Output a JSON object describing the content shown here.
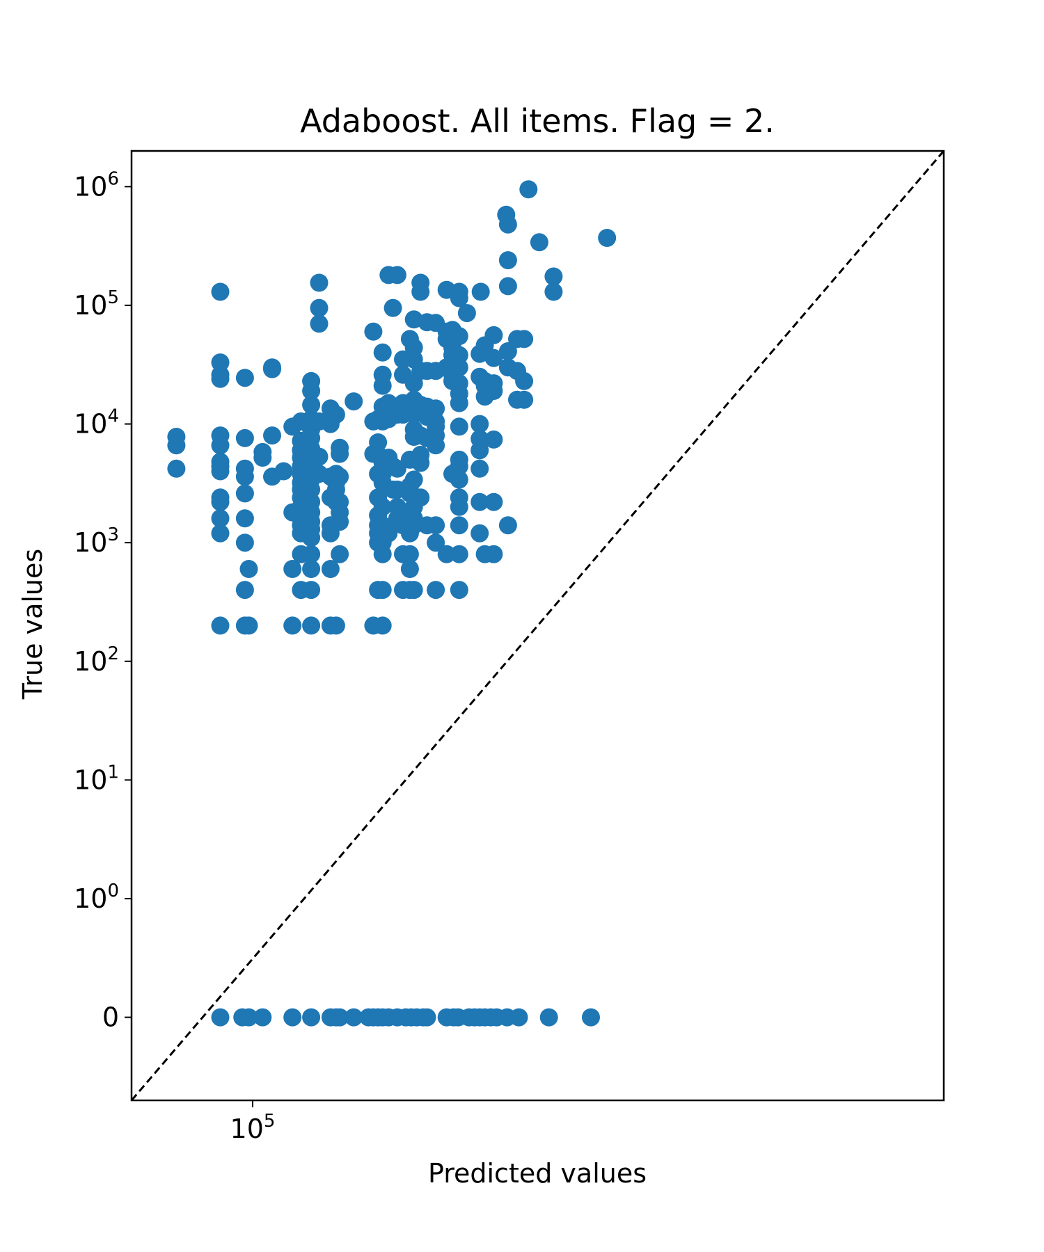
{
  "chart_data": {
    "type": "scatter",
    "title": "Adaboost. All items. Flag = 2.",
    "xlabel": "Predicted values",
    "ylabel": "True values",
    "xscale": "log",
    "yscale": "symlog",
    "xlim": [
      62000,
      1530000
    ],
    "ylim": [
      -0.7,
      2000000
    ],
    "grid": false,
    "legend": "none",
    "marker_color": "#1f77b4",
    "reference_line": {
      "style": "dashed",
      "color": "#000000",
      "from": [
        62000,
        -0.7
      ],
      "to": [
        1530000,
        2000000
      ]
    },
    "x_ticks": [
      {
        "value": 100000,
        "base": "10",
        "exp": "5"
      }
    ],
    "y_ticks": [
      {
        "value": 0,
        "base": "0",
        "exp": ""
      },
      {
        "value": 1,
        "base": "10",
        "exp": "0"
      },
      {
        "value": 10,
        "base": "10",
        "exp": "1"
      },
      {
        "value": 100,
        "base": "10",
        "exp": "2"
      },
      {
        "value": 1000,
        "base": "10",
        "exp": "3"
      },
      {
        "value": 10000,
        "base": "10",
        "exp": "4"
      },
      {
        "value": 100000,
        "base": "10",
        "exp": "5"
      },
      {
        "value": 1000000,
        "base": "10",
        "exp": "6"
      }
    ],
    "points": [
      [
        74000,
        7800
      ],
      [
        74000,
        6600
      ],
      [
        74000,
        4200
      ],
      [
        88000,
        130000
      ],
      [
        88000,
        33000
      ],
      [
        88000,
        26000
      ],
      [
        88000,
        24000
      ],
      [
        88000,
        8000
      ],
      [
        88000,
        6600
      ],
      [
        88000,
        4800
      ],
      [
        88000,
        4400
      ],
      [
        88000,
        4000
      ],
      [
        88000,
        2400
      ],
      [
        88000,
        2200
      ],
      [
        88000,
        1600
      ],
      [
        88000,
        1200
      ],
      [
        88000,
        200
      ],
      [
        97000,
        24500
      ],
      [
        97000,
        7600
      ],
      [
        97000,
        4200
      ],
      [
        97000,
        3600
      ],
      [
        97000,
        2600
      ],
      [
        97000,
        1600
      ],
      [
        97000,
        1000
      ],
      [
        97000,
        400
      ],
      [
        97000,
        200
      ],
      [
        98500,
        600
      ],
      [
        98500,
        200
      ],
      [
        104000,
        5800
      ],
      [
        104000,
        5200
      ],
      [
        108000,
        30000
      ],
      [
        108000,
        29000
      ],
      [
        108000,
        8000
      ],
      [
        108000,
        3600
      ],
      [
        113000,
        4000
      ],
      [
        117000,
        9500
      ],
      [
        117000,
        1800
      ],
      [
        117000,
        600
      ],
      [
        117000,
        200
      ],
      [
        121000,
        10500
      ],
      [
        121000,
        7200
      ],
      [
        121000,
        6000
      ],
      [
        121000,
        5200
      ],
      [
        121000,
        4400
      ],
      [
        121000,
        3800
      ],
      [
        121000,
        3200
      ],
      [
        121000,
        2800
      ],
      [
        121000,
        2400
      ],
      [
        121000,
        2000
      ],
      [
        121000,
        1600
      ],
      [
        121000,
        1400
      ],
      [
        121000,
        1200
      ],
      [
        121000,
        800
      ],
      [
        121000,
        400
      ],
      [
        126000,
        23000
      ],
      [
        126000,
        19000
      ],
      [
        126000,
        14500
      ],
      [
        126000,
        11000
      ],
      [
        126000,
        9000
      ],
      [
        126000,
        7600
      ],
      [
        126000,
        6200
      ],
      [
        126000,
        5000
      ],
      [
        126000,
        4000
      ],
      [
        126000,
        3400
      ],
      [
        126000,
        2800
      ],
      [
        126000,
        2200
      ],
      [
        126000,
        1800
      ],
      [
        126000,
        1500
      ],
      [
        126000,
        1300
      ],
      [
        126000,
        1100
      ],
      [
        126000,
        800
      ],
      [
        126000,
        600
      ],
      [
        126000,
        400
      ],
      [
        126000,
        200
      ],
      [
        130000,
        155000
      ],
      [
        130000,
        95000
      ],
      [
        130000,
        70000
      ],
      [
        130000,
        10500
      ],
      [
        130000,
        5300
      ],
      [
        130000,
        3800
      ],
      [
        136000,
        13500
      ],
      [
        136000,
        10000
      ],
      [
        136000,
        3600
      ],
      [
        136000,
        2400
      ],
      [
        136000,
        1400
      ],
      [
        136000,
        1200
      ],
      [
        136000,
        600
      ],
      [
        136000,
        200
      ],
      [
        139000,
        12000
      ],
      [
        139000,
        3800
      ],
      [
        139000,
        3200
      ],
      [
        139000,
        2800
      ],
      [
        139000,
        2200
      ],
      [
        139000,
        200
      ],
      [
        141000,
        6300
      ],
      [
        141000,
        5600
      ],
      [
        141000,
        3600
      ],
      [
        141000,
        2200
      ],
      [
        141000,
        1800
      ],
      [
        141000,
        1500
      ],
      [
        141000,
        800
      ],
      [
        149000,
        15500
      ],
      [
        161000,
        60000
      ],
      [
        161000,
        10500
      ],
      [
        161000,
        5600
      ],
      [
        161000,
        200
      ],
      [
        164000,
        11000
      ],
      [
        164000,
        7000
      ],
      [
        164000,
        5500
      ],
      [
        164000,
        3800
      ],
      [
        164000,
        2400
      ],
      [
        164000,
        1700
      ],
      [
        164000,
        1400
      ],
      [
        164000,
        1200
      ],
      [
        164000,
        1000
      ],
      [
        164000,
        400
      ],
      [
        167000,
        40000
      ],
      [
        167000,
        26000
      ],
      [
        167000,
        21000
      ],
      [
        167000,
        14000
      ],
      [
        167000,
        10500
      ],
      [
        167000,
        4700
      ],
      [
        167000,
        3800
      ],
      [
        167000,
        3200
      ],
      [
        167000,
        2000
      ],
      [
        167000,
        1400
      ],
      [
        167000,
        1000
      ],
      [
        167000,
        800
      ],
      [
        167000,
        400
      ],
      [
        167000,
        200
      ],
      [
        171000,
        180000
      ],
      [
        171000,
        15000
      ],
      [
        171000,
        11000
      ],
      [
        171000,
        5200
      ],
      [
        171000,
        4400
      ],
      [
        171000,
        1200
      ],
      [
        174000,
        95000
      ],
      [
        174000,
        12000
      ],
      [
        174000,
        4400
      ],
      [
        174000,
        2800
      ],
      [
        177000,
        180000
      ],
      [
        177000,
        12000
      ],
      [
        177000,
        4200
      ],
      [
        177000,
        2800
      ],
      [
        177000,
        2000
      ],
      [
        177000,
        1600
      ],
      [
        181000,
        35000
      ],
      [
        181000,
        26000
      ],
      [
        181000,
        15000
      ],
      [
        181000,
        12000
      ],
      [
        181000,
        1800
      ],
      [
        181000,
        1400
      ],
      [
        181000,
        800
      ],
      [
        181000,
        400
      ],
      [
        186000,
        52000
      ],
      [
        186000,
        13000
      ],
      [
        186000,
        5000
      ],
      [
        186000,
        3000
      ],
      [
        186000,
        2600
      ],
      [
        186000,
        1400
      ],
      [
        186000,
        1200
      ],
      [
        186000,
        800
      ],
      [
        186000,
        600
      ],
      [
        186000,
        400
      ],
      [
        189000,
        76000
      ],
      [
        189000,
        44000
      ],
      [
        189000,
        35000
      ],
      [
        189000,
        22000
      ],
      [
        189000,
        16000
      ],
      [
        189000,
        12000
      ],
      [
        189000,
        9000
      ],
      [
        189000,
        7800
      ],
      [
        189000,
        3400
      ],
      [
        189000,
        2000
      ],
      [
        189000,
        1600
      ],
      [
        189000,
        1400
      ],
      [
        189000,
        400
      ],
      [
        194000,
        155000
      ],
      [
        194000,
        130000
      ],
      [
        194000,
        28000
      ],
      [
        194000,
        14500
      ],
      [
        194000,
        8000
      ],
      [
        194000,
        5500
      ],
      [
        194000,
        4700
      ],
      [
        194000,
        2400
      ],
      [
        199000,
        72000
      ],
      [
        199000,
        28000
      ],
      [
        199000,
        14000
      ],
      [
        199000,
        11500
      ],
      [
        199000,
        7600
      ],
      [
        199000,
        1400
      ],
      [
        206000,
        71000
      ],
      [
        206000,
        28000
      ],
      [
        206000,
        13500
      ],
      [
        206000,
        10500
      ],
      [
        206000,
        9500
      ],
      [
        206000,
        8000
      ],
      [
        206000,
        6600
      ],
      [
        206000,
        1400
      ],
      [
        206000,
        1000
      ],
      [
        206000,
        400
      ],
      [
        215000,
        135000
      ],
      [
        215000,
        60000
      ],
      [
        215000,
        52000
      ],
      [
        215000,
        30000
      ],
      [
        215000,
        800
      ],
      [
        220000,
        62000
      ],
      [
        220000,
        44000
      ],
      [
        220000,
        38000
      ],
      [
        220000,
        26000
      ],
      [
        220000,
        23000
      ],
      [
        220000,
        3800
      ],
      [
        226000,
        130000
      ],
      [
        226000,
        115000
      ],
      [
        226000,
        55000
      ],
      [
        226000,
        38000
      ],
      [
        226000,
        30000
      ],
      [
        226000,
        22000
      ],
      [
        226000,
        18000
      ],
      [
        226000,
        15000
      ],
      [
        226000,
        9500
      ],
      [
        226000,
        5000
      ],
      [
        226000,
        4400
      ],
      [
        226000,
        3400
      ],
      [
        226000,
        2400
      ],
      [
        226000,
        2000
      ],
      [
        226000,
        1400
      ],
      [
        226000,
        800
      ],
      [
        226000,
        400
      ],
      [
        233000,
        86000
      ],
      [
        246000,
        130000
      ],
      [
        245000,
        39000
      ],
      [
        245000,
        25000
      ],
      [
        245000,
        10000
      ],
      [
        245000,
        7500
      ],
      [
        245000,
        6000
      ],
      [
        245000,
        4200
      ],
      [
        245000,
        2200
      ],
      [
        245000,
        1200
      ],
      [
        250000,
        46000
      ],
      [
        250000,
        23000
      ],
      [
        250000,
        21000
      ],
      [
        250000,
        17000
      ],
      [
        250000,
        800
      ],
      [
        259000,
        56000
      ],
      [
        259000,
        36000
      ],
      [
        259000,
        22000
      ],
      [
        259000,
        19000
      ],
      [
        259000,
        7400
      ],
      [
        259000,
        2200
      ],
      [
        259000,
        800
      ],
      [
        272000,
        580000
      ],
      [
        274000,
        480000
      ],
      [
        274000,
        240000
      ],
      [
        274000,
        145000
      ],
      [
        274000,
        41000
      ],
      [
        274000,
        30000
      ],
      [
        274000,
        1400
      ],
      [
        284000,
        52000
      ],
      [
        284000,
        28000
      ],
      [
        284000,
        16000
      ],
      [
        292000,
        52000
      ],
      [
        292000,
        23000
      ],
      [
        292000,
        16000
      ],
      [
        297000,
        950000
      ],
      [
        310000,
        340000
      ],
      [
        328000,
        175000
      ],
      [
        328000,
        130000
      ],
      [
        405000,
        370000
      ],
      [
        88000,
        0
      ],
      [
        96000,
        0
      ],
      [
        98500,
        0
      ],
      [
        104000,
        0
      ],
      [
        117000,
        0
      ],
      [
        126000,
        0
      ],
      [
        136000,
        0
      ],
      [
        139000,
        0
      ],
      [
        141000,
        0
      ],
      [
        149000,
        0
      ],
      [
        158000,
        0
      ],
      [
        161000,
        0
      ],
      [
        164000,
        0
      ],
      [
        167000,
        0
      ],
      [
        171000,
        0
      ],
      [
        177000,
        0
      ],
      [
        183000,
        0
      ],
      [
        187000,
        0
      ],
      [
        191000,
        0
      ],
      [
        196000,
        0
      ],
      [
        199000,
        0
      ],
      [
        215000,
        0
      ],
      [
        221000,
        0
      ],
      [
        225000,
        0
      ],
      [
        235000,
        0
      ],
      [
        240000,
        0
      ],
      [
        245000,
        0
      ],
      [
        250000,
        0
      ],
      [
        256000,
        0
      ],
      [
        262000,
        0
      ],
      [
        273000,
        0
      ],
      [
        286000,
        0
      ],
      [
        322000,
        0
      ],
      [
        380000,
        0
      ]
    ]
  }
}
